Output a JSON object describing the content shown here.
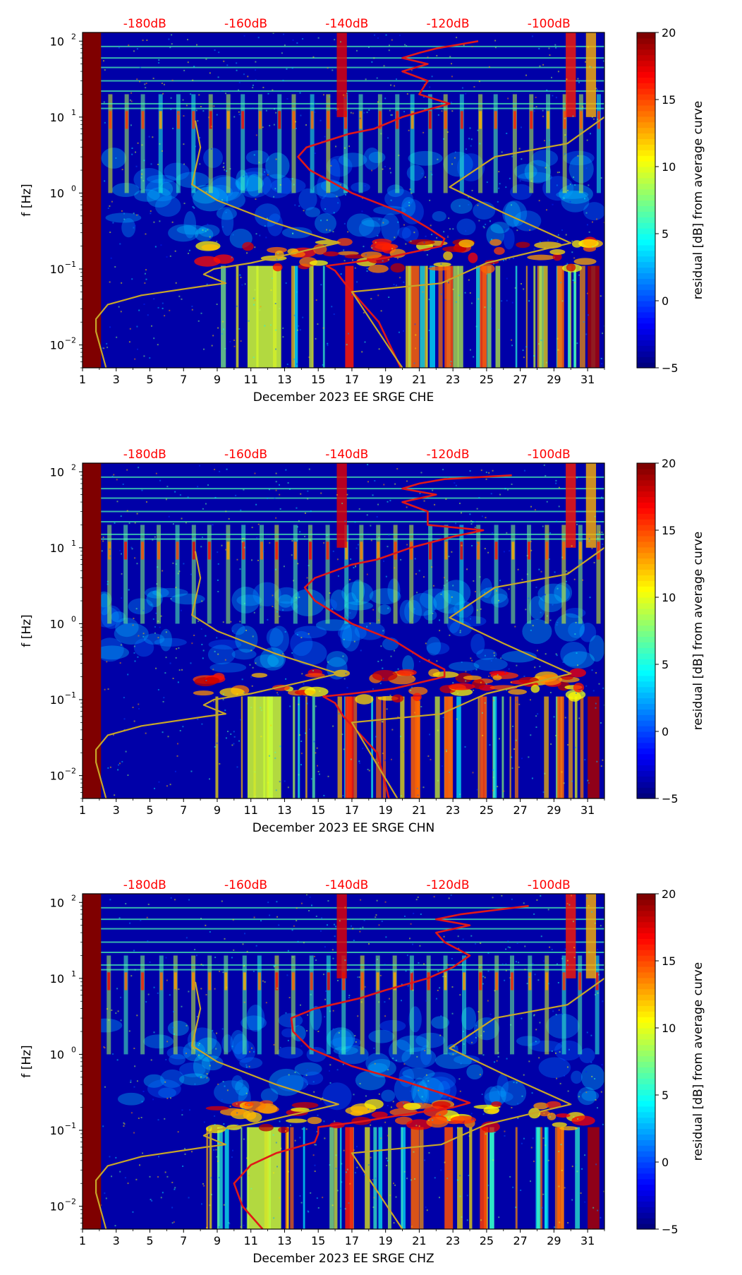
{
  "colors": {
    "cmap": [
      "#00007f",
      "#0000ff",
      "#007fff",
      "#00ffff",
      "#7fff7f",
      "#ffff00",
      "#ff7f00",
      "#ff0000",
      "#7f0000"
    ],
    "top_label_color": "#ff0000",
    "mean_curve_color": "#e01818",
    "ref_curve_color": "#c8a628",
    "axis_color": "#000000"
  },
  "chart_data": [
    {
      "type": "heatmap",
      "title": "",
      "xlabel": "December 2023 EE SRGE  CHE",
      "ylabel": "f [Hz]",
      "xlim": [
        1,
        32
      ],
      "ylim": [
        0.005,
        130
      ],
      "yscale": "log",
      "x_ticks": [
        "1",
        "3",
        "5",
        "7",
        "9",
        "11",
        "13",
        "15",
        "17",
        "19",
        "21",
        "23",
        "25",
        "27",
        "29",
        "31"
      ],
      "y_ticks": [
        "10",
        "10",
        "10",
        "10",
        "10"
      ],
      "y_tick_exponents": [
        "−2",
        "−1",
        "0",
        "1",
        "2"
      ],
      "top_scale_labels": [
        "-180dB",
        "-160dB",
        "-140dB",
        "-120dB",
        "-100dB"
      ],
      "colorbar": {
        "label": "residual [dB] from average curve",
        "range": [
          -5,
          20
        ],
        "ticks": [
          "−5",
          "0",
          "5",
          "10",
          "15",
          "20"
        ]
      },
      "series": [
        {
          "name": "average psd (top dB scale)",
          "color": "red",
          "points": [
            [
              19.9,
              0.005
            ],
            [
              18.6,
              0.02
            ],
            [
              16.7,
              0.06
            ],
            [
              16.0,
              0.095
            ],
            [
              15.5,
              0.11
            ],
            [
              16.8,
              0.12
            ],
            [
              19.0,
              0.14
            ],
            [
              22.3,
              0.2
            ],
            [
              22.5,
              0.25
            ],
            [
              21.5,
              0.35
            ],
            [
              20.0,
              0.55
            ],
            [
              17.0,
              1.0
            ],
            [
              14.5,
              2.0
            ],
            [
              13.8,
              3.0
            ],
            [
              14.3,
              4.0
            ],
            [
              16.8,
              6.0
            ],
            [
              18.3,
              7.0
            ],
            [
              20.0,
              10.0
            ],
            [
              21.5,
              12.5
            ],
            [
              22.8,
              15.0
            ],
            [
              21.0,
              20.0
            ],
            [
              21.5,
              30.0
            ],
            [
              20.0,
              40.0
            ],
            [
              21.5,
              50.0
            ],
            [
              20.0,
              60.0
            ],
            [
              21.0,
              70.0
            ],
            [
              22.0,
              80.0
            ],
            [
              24.5,
              100.0
            ]
          ]
        },
        {
          "name": "reference model (top dB scale)",
          "color": "gold",
          "points": [
            [
              2.4,
              0.005
            ],
            [
              1.8,
              0.015
            ],
            [
              1.8,
              0.022
            ],
            [
              2.5,
              0.034
            ],
            [
              4.5,
              0.045
            ],
            [
              8.3,
              0.06
            ],
            [
              9.5,
              0.065
            ],
            [
              8.2,
              0.085
            ],
            [
              8.8,
              0.1
            ],
            [
              11.0,
              0.12
            ],
            [
              14.0,
              0.17
            ],
            [
              16.2,
              0.22
            ],
            [
              12.5,
              0.4
            ],
            [
              9.0,
              0.8
            ],
            [
              7.5,
              1.3
            ],
            [
              8.0,
              4.0
            ],
            [
              7.7,
              9.0
            ]
          ]
        },
        {
          "name": "reference model upper (top dB scale)",
          "color": "gold",
          "points": [
            [
              20.0,
              0.005
            ],
            [
              17.0,
              0.05
            ],
            [
              22.3,
              0.065
            ],
            [
              25.0,
              0.12
            ],
            [
              30.0,
              0.22
            ],
            [
              26.0,
              0.55
            ],
            [
              22.8,
              1.2
            ],
            [
              25.5,
              3.0
            ],
            [
              29.8,
              4.5
            ],
            [
              32.0,
              10.0
            ]
          ]
        }
      ]
    },
    {
      "type": "heatmap",
      "title": "",
      "xlabel": "December 2023 EE SRGE  CHN",
      "ylabel": "f [Hz]",
      "xlim": [
        1,
        32
      ],
      "ylim": [
        0.005,
        130
      ],
      "yscale": "log",
      "x_ticks": [
        "1",
        "3",
        "5",
        "7",
        "9",
        "11",
        "13",
        "15",
        "17",
        "19",
        "21",
        "23",
        "25",
        "27",
        "29",
        "31"
      ],
      "y_ticks": [
        "10",
        "10",
        "10",
        "10",
        "10"
      ],
      "y_tick_exponents": [
        "−2",
        "−1",
        "0",
        "1",
        "2"
      ],
      "top_scale_labels": [
        "-180dB",
        "-160dB",
        "-140dB",
        "-120dB",
        "-100dB"
      ],
      "colorbar": {
        "label": "residual [dB] from average curve",
        "range": [
          -5,
          20
        ],
        "ticks": [
          "−5",
          "0",
          "5",
          "10",
          "15",
          "20"
        ]
      },
      "series": [
        {
          "name": "average psd (top dB scale)",
          "color": "red",
          "points": [
            [
              19.2,
              0.005
            ],
            [
              18.5,
              0.02
            ],
            [
              16.5,
              0.06
            ],
            [
              16.0,
              0.09
            ],
            [
              15.3,
              0.11
            ],
            [
              17.0,
              0.12
            ],
            [
              19.5,
              0.14
            ],
            [
              22.5,
              0.2
            ],
            [
              22.5,
              0.25
            ],
            [
              21.2,
              0.35
            ],
            [
              19.5,
              0.6
            ],
            [
              17.0,
              1.0
            ],
            [
              14.8,
              2.0
            ],
            [
              14.2,
              3.0
            ],
            [
              14.8,
              4.0
            ],
            [
              17.0,
              6.0
            ],
            [
              18.5,
              7.0
            ],
            [
              20.5,
              10.0
            ],
            [
              23.0,
              14.0
            ],
            [
              24.8,
              17.0
            ],
            [
              21.5,
              20.0
            ],
            [
              21.5,
              30.0
            ],
            [
              20.0,
              40.0
            ],
            [
              22.0,
              50.0
            ],
            [
              20.0,
              60.0
            ],
            [
              21.0,
              70.0
            ],
            [
              22.5,
              80.0
            ],
            [
              26.5,
              90.0
            ]
          ]
        },
        {
          "name": "reference model (top dB scale)",
          "color": "gold",
          "points": [
            [
              2.4,
              0.005
            ],
            [
              1.8,
              0.015
            ],
            [
              1.8,
              0.022
            ],
            [
              2.5,
              0.034
            ],
            [
              4.5,
              0.045
            ],
            [
              8.3,
              0.06
            ],
            [
              9.5,
              0.065
            ],
            [
              8.2,
              0.085
            ],
            [
              8.8,
              0.1
            ],
            [
              11.0,
              0.12
            ],
            [
              14.0,
              0.17
            ],
            [
              16.2,
              0.22
            ],
            [
              12.5,
              0.4
            ],
            [
              9.0,
              0.8
            ],
            [
              7.5,
              1.3
            ],
            [
              8.0,
              4.0
            ],
            [
              7.7,
              9.0
            ]
          ]
        },
        {
          "name": "reference model upper (top dB scale)",
          "color": "gold",
          "points": [
            [
              19.7,
              0.005
            ],
            [
              17.0,
              0.05
            ],
            [
              22.3,
              0.065
            ],
            [
              25.0,
              0.12
            ],
            [
              30.0,
              0.22
            ],
            [
              26.0,
              0.55
            ],
            [
              22.8,
              1.2
            ],
            [
              25.5,
              3.0
            ],
            [
              29.8,
              4.5
            ],
            [
              32.0,
              10.0
            ]
          ]
        }
      ]
    },
    {
      "type": "heatmap",
      "title": "",
      "xlabel": "December 2023 EE SRGE  CHZ",
      "ylabel": "f [Hz]",
      "xlim": [
        1,
        32
      ],
      "ylim": [
        0.005,
        130
      ],
      "yscale": "log",
      "x_ticks": [
        "1",
        "3",
        "5",
        "7",
        "9",
        "11",
        "13",
        "15",
        "17",
        "19",
        "21",
        "23",
        "25",
        "27",
        "29",
        "31"
      ],
      "y_ticks": [
        "10",
        "10",
        "10",
        "10",
        "10"
      ],
      "y_tick_exponents": [
        "−2",
        "−1",
        "0",
        "1",
        "2"
      ],
      "top_scale_labels": [
        "-180dB",
        "-160dB",
        "-140dB",
        "-120dB",
        "-100dB"
      ],
      "colorbar": {
        "label": "residual [dB] from average curve",
        "range": [
          -5,
          20
        ],
        "ticks": [
          "−5",
          "0",
          "5",
          "10",
          "15",
          "20"
        ]
      },
      "series": [
        {
          "name": "average psd (top dB scale)",
          "color": "red",
          "points": [
            [
              11.7,
              0.005
            ],
            [
              10.5,
              0.01
            ],
            [
              10.0,
              0.02
            ],
            [
              11.0,
              0.035
            ],
            [
              12.5,
              0.05
            ],
            [
              14.8,
              0.07
            ],
            [
              15.0,
              0.09
            ],
            [
              15.0,
              0.11
            ],
            [
              17.5,
              0.13
            ],
            [
              20.0,
              0.16
            ],
            [
              23.0,
              0.2
            ],
            [
              24.0,
              0.23
            ],
            [
              22.5,
              0.3
            ],
            [
              20.0,
              0.45
            ],
            [
              17.0,
              0.7
            ],
            [
              14.5,
              1.2
            ],
            [
              13.5,
              2.0
            ],
            [
              13.4,
              3.0
            ],
            [
              14.8,
              4.0
            ],
            [
              17.5,
              5.5
            ],
            [
              19.0,
              7.0
            ],
            [
              21.5,
              10.0
            ],
            [
              23.0,
              14.0
            ],
            [
              24.0,
              20.0
            ],
            [
              22.5,
              30.0
            ],
            [
              22.0,
              40.0
            ],
            [
              24.0,
              50.0
            ],
            [
              22.0,
              60.0
            ],
            [
              23.5,
              70.0
            ],
            [
              27.5,
              90.0
            ]
          ]
        },
        {
          "name": "reference model (top dB scale)",
          "color": "gold",
          "points": [
            [
              2.4,
              0.005
            ],
            [
              1.8,
              0.015
            ],
            [
              1.8,
              0.022
            ],
            [
              2.5,
              0.034
            ],
            [
              4.5,
              0.045
            ],
            [
              8.3,
              0.06
            ],
            [
              9.5,
              0.065
            ],
            [
              8.2,
              0.085
            ],
            [
              8.8,
              0.1
            ],
            [
              11.0,
              0.12
            ],
            [
              14.0,
              0.17
            ],
            [
              16.2,
              0.22
            ],
            [
              12.5,
              0.4
            ],
            [
              9.0,
              0.8
            ],
            [
              7.5,
              1.3
            ],
            [
              8.0,
              4.0
            ],
            [
              7.7,
              9.0
            ]
          ]
        },
        {
          "name": "reference model upper (top dB scale)",
          "color": "gold",
          "points": [
            [
              20.0,
              0.005
            ],
            [
              17.0,
              0.05
            ],
            [
              22.3,
              0.065
            ],
            [
              25.0,
              0.12
            ],
            [
              30.0,
              0.22
            ],
            [
              26.0,
              0.55
            ],
            [
              22.8,
              1.2
            ],
            [
              25.5,
              3.0
            ],
            [
              29.8,
              4.5
            ],
            [
              32.0,
              10.0
            ]
          ]
        }
      ]
    }
  ]
}
